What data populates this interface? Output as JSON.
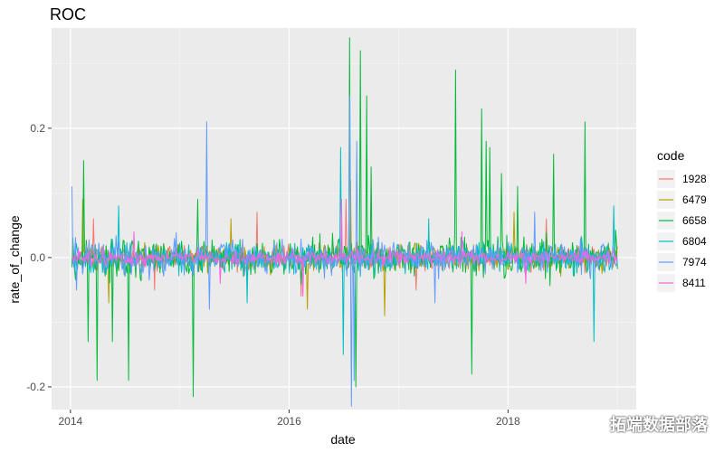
{
  "chart_data": {
    "type": "line",
    "title": "ROC",
    "xlabel": "date",
    "ylabel": "rate_of_change",
    "x_range": [
      "2013-10-30",
      "2019-03-05"
    ],
    "ylim": [
      -0.235,
      0.355
    ],
    "x_ticks": [
      {
        "value": "2014-01-01",
        "label": "2014"
      },
      {
        "value": "2016-01-01",
        "label": "2016"
      },
      {
        "value": "2018-01-01",
        "label": "2018"
      }
    ],
    "x_minor_ticks": [
      "2015-01-01",
      "2017-01-01",
      "2019-01-01"
    ],
    "y_ticks": [
      -0.2,
      0.0,
      0.2
    ],
    "y_minor_ticks": [
      -0.1,
      0.1,
      0.3
    ],
    "grid": true,
    "legend_title": "code",
    "legend_position": "right",
    "series": [
      {
        "name": "1928",
        "color": "#F8766D",
        "noise": 0.018,
        "points": [
          [
            "2014-03-20",
            0.06
          ],
          [
            "2014-10-10",
            -0.05
          ],
          [
            "2015-09-15",
            0.07
          ],
          [
            "2016-02-10",
            -0.06
          ],
          [
            "2016-07-10",
            0.09
          ],
          [
            "2017-03-01",
            -0.05
          ],
          [
            "2018-05-10",
            0.06
          ]
        ]
      },
      {
        "name": "6479",
        "color": "#B79F00",
        "noise": 0.02,
        "points": [
          [
            "2014-02-10",
            0.09
          ],
          [
            "2014-05-10",
            -0.07
          ],
          [
            "2015-06-20",
            0.06
          ],
          [
            "2016-03-01",
            -0.08
          ],
          [
            "2016-07-25",
            0.12
          ],
          [
            "2016-11-15",
            -0.09
          ],
          [
            "2018-01-20",
            0.07
          ]
        ]
      },
      {
        "name": "6658",
        "color": "#00BA38",
        "noise": 0.03,
        "points": [
          [
            "2014-02-15",
            0.15
          ],
          [
            "2014-03-01",
            -0.13
          ],
          [
            "2014-04-01",
            -0.19
          ],
          [
            "2014-05-20",
            -0.13
          ],
          [
            "2014-07-15",
            -0.19
          ],
          [
            "2015-02-15",
            -0.215
          ],
          [
            "2015-03-01",
            0.09
          ],
          [
            "2016-07-20",
            0.34
          ],
          [
            "2016-08-10",
            -0.2
          ],
          [
            "2016-08-25",
            0.32
          ],
          [
            "2016-09-15",
            0.25
          ],
          [
            "2016-10-01",
            0.14
          ],
          [
            "2017-07-10",
            0.29
          ],
          [
            "2017-10-05",
            0.23
          ],
          [
            "2017-10-20",
            0.18
          ],
          [
            "2017-11-01",
            0.17
          ],
          [
            "2018-02-01",
            0.11
          ],
          [
            "2018-06-01",
            0.16
          ],
          [
            "2018-09-15",
            0.21
          ],
          [
            "2019-01-05",
            -0.11
          ],
          [
            "2017-09-01",
            -0.18
          ],
          [
            "2017-12-10",
            0.13
          ]
        ]
      },
      {
        "name": "6804",
        "color": "#00BFC4",
        "noise": 0.022,
        "points": [
          [
            "2014-06-10",
            0.08
          ],
          [
            "2015-08-15",
            -0.07
          ],
          [
            "2016-06-20",
            0.17
          ],
          [
            "2016-07-01",
            -0.15
          ],
          [
            "2017-04-10",
            0.06
          ],
          [
            "2018-10-15",
            -0.13
          ],
          [
            "2018-12-20",
            0.08
          ]
        ]
      },
      {
        "name": "7974",
        "color": "#619CFF",
        "noise": 0.025,
        "points": [
          [
            "2014-01-05",
            0.11
          ],
          [
            "2014-01-20",
            -0.05
          ],
          [
            "2015-04-01",
            0.21
          ],
          [
            "2015-04-10",
            -0.08
          ],
          [
            "2016-07-20",
            0.25
          ],
          [
            "2016-07-28",
            -0.23
          ],
          [
            "2016-08-05",
            -0.19
          ],
          [
            "2016-08-15",
            0.18
          ],
          [
            "2017-05-01",
            -0.07
          ],
          [
            "2018-04-01",
            0.07
          ]
        ]
      },
      {
        "name": "8411",
        "color": "#F564E3",
        "noise": 0.011,
        "points": [
          [
            "2014-08-01",
            0.04
          ],
          [
            "2015-05-15",
            -0.04
          ],
          [
            "2016-02-15",
            -0.06
          ],
          [
            "2016-06-25",
            0.09
          ],
          [
            "2017-08-01",
            0.04
          ],
          [
            "2018-03-01",
            -0.04
          ]
        ]
      }
    ]
  },
  "watermark": {
    "text": "拓端数据部落",
    "icon": "wechat-icon"
  }
}
